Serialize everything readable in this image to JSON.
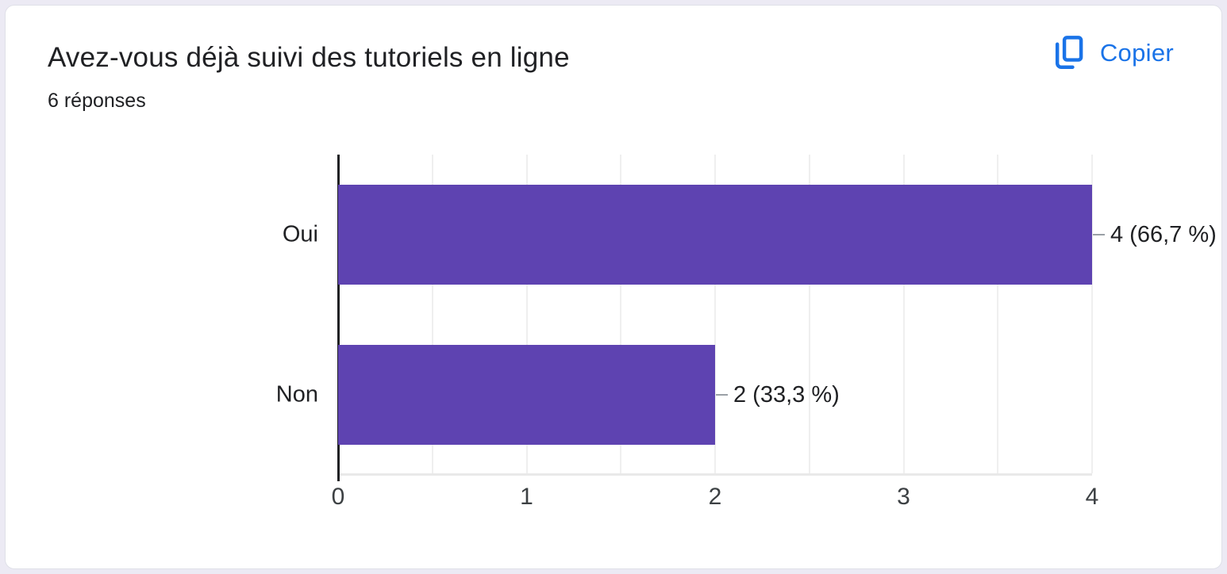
{
  "card": {
    "title": "Avez-vous déjà suivi des tutoriels en ligne",
    "responses_count": "6 réponses",
    "copy_button": {
      "label": "Copier"
    }
  },
  "colors": {
    "bar": "#5e43b1",
    "accent_blue": "#1a73e8",
    "axis": "#202124",
    "text": "#202124",
    "gridline": "#efefef",
    "page_background": "#eceaf4",
    "card_background": "#ffffff"
  },
  "chart_data": {
    "type": "bar",
    "orientation": "horizontal",
    "title": "Avez-vous déjà suivi des tutoriels en ligne",
    "subtitle": "6 réponses",
    "categories": [
      "Oui",
      "Non"
    ],
    "values": [
      4,
      2
    ],
    "value_labels": [
      "4 (66,7 %)",
      "2 (33,3 %)"
    ],
    "percentages": [
      66.7,
      33.3
    ],
    "total_responses": 6,
    "xlim": [
      0,
      4
    ],
    "x_ticks": [
      0,
      1,
      2,
      3,
      4
    ],
    "gridline_step": 0.5,
    "grid": "vertical",
    "legend": "none",
    "bar_color": "#5e43b1"
  }
}
